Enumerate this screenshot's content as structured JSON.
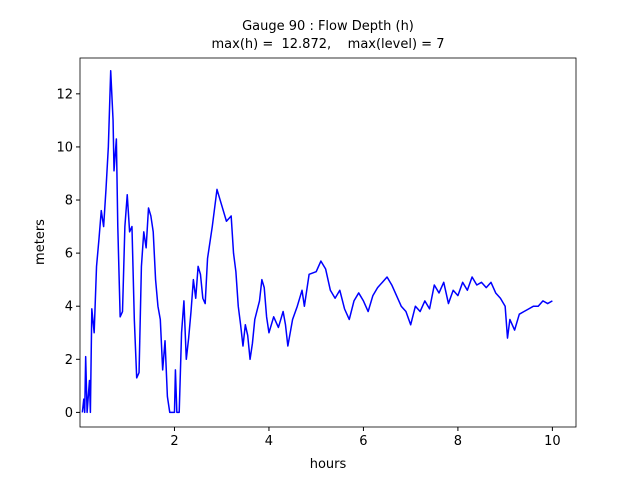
{
  "chart_data": {
    "type": "line",
    "title": "Gauge 90 : Flow Depth (h)",
    "subtitle": "max(h) =  12.872,    max(level) = 7",
    "x_label": "hours",
    "y_label": "meters",
    "xlim": [
      0.0,
      10.5
    ],
    "ylim": [
      -0.55,
      13.35
    ],
    "xticks": [
      2,
      4,
      6,
      8,
      10
    ],
    "yticks": [
      0,
      2,
      4,
      6,
      8,
      10,
      12
    ],
    "grid": false,
    "x": [
      0.05,
      0.08,
      0.1,
      0.12,
      0.15,
      0.2,
      0.22,
      0.25,
      0.3,
      0.35,
      0.4,
      0.45,
      0.5,
      0.55,
      0.6,
      0.65,
      0.7,
      0.72,
      0.77,
      0.8,
      0.85,
      0.9,
      0.95,
      1.0,
      1.05,
      1.1,
      1.15,
      1.2,
      1.25,
      1.3,
      1.35,
      1.4,
      1.45,
      1.5,
      1.55,
      1.6,
      1.65,
      1.7,
      1.75,
      1.8,
      1.85,
      1.9,
      2.0,
      2.02,
      2.05,
      2.1,
      2.15,
      2.2,
      2.25,
      2.3,
      2.35,
      2.4,
      2.45,
      2.5,
      2.55,
      2.6,
      2.65,
      2.7,
      2.8,
      2.9,
      3.0,
      3.1,
      3.2,
      3.25,
      3.3,
      3.35,
      3.4,
      3.45,
      3.5,
      3.55,
      3.6,
      3.65,
      3.7,
      3.8,
      3.85,
      3.9,
      3.95,
      4.0,
      4.1,
      4.2,
      4.3,
      4.35,
      4.4,
      4.5,
      4.6,
      4.7,
      4.75,
      4.85,
      5.0,
      5.1,
      5.2,
      5.3,
      5.4,
      5.5,
      5.6,
      5.7,
      5.8,
      5.9,
      6.0,
      6.1,
      6.2,
      6.3,
      6.4,
      6.5,
      6.6,
      6.7,
      6.8,
      6.9,
      7.0,
      7.1,
      7.2,
      7.3,
      7.4,
      7.5,
      7.6,
      7.7,
      7.8,
      7.9,
      8.0,
      8.1,
      8.2,
      8.3,
      8.4,
      8.5,
      8.6,
      8.7,
      8.8,
      8.9,
      9.0,
      9.05,
      9.1,
      9.2,
      9.3,
      9.4,
      9.5,
      9.6,
      9.7,
      9.8,
      9.9,
      10.0
    ],
    "series": [
      {
        "name": "h",
        "color": "#0000ff",
        "values": [
          0.0,
          0.5,
          0.0,
          2.1,
          0.0,
          1.2,
          0.0,
          3.9,
          3.0,
          5.5,
          6.5,
          7.6,
          7.0,
          8.4,
          10.0,
          12.872,
          11.0,
          9.1,
          10.3,
          7.0,
          3.6,
          3.8,
          7.0,
          8.2,
          6.8,
          7.0,
          3.5,
          1.3,
          1.5,
          5.5,
          6.8,
          6.2,
          7.7,
          7.4,
          6.8,
          5.0,
          4.0,
          3.5,
          1.6,
          2.7,
          0.6,
          0.0,
          0.0,
          1.6,
          0.0,
          0.0,
          3.0,
          4.2,
          2.0,
          2.8,
          3.8,
          5.0,
          4.3,
          5.5,
          5.2,
          4.3,
          4.1,
          5.8,
          7.0,
          8.4,
          7.8,
          7.2,
          7.4,
          6.0,
          5.3,
          4.0,
          3.3,
          2.5,
          3.3,
          2.9,
          2.0,
          2.6,
          3.5,
          4.2,
          5.0,
          4.7,
          3.6,
          3.0,
          3.6,
          3.2,
          3.8,
          3.3,
          2.5,
          3.5,
          4.0,
          4.6,
          4.0,
          5.2,
          5.3,
          5.7,
          5.4,
          4.6,
          4.3,
          4.6,
          3.9,
          3.5,
          4.2,
          4.5,
          4.2,
          3.8,
          4.4,
          4.7,
          4.9,
          5.1,
          4.8,
          4.4,
          4.0,
          3.8,
          3.3,
          4.0,
          3.8,
          4.2,
          3.9,
          4.8,
          4.5,
          4.9,
          4.1,
          4.6,
          4.4,
          4.9,
          4.6,
          5.1,
          4.8,
          4.9,
          4.7,
          4.9,
          4.5,
          4.3,
          4.0,
          2.8,
          3.5,
          3.1,
          3.7,
          3.8,
          3.9,
          4.0,
          4.0,
          4.2,
          4.1,
          4.2
        ]
      }
    ]
  }
}
